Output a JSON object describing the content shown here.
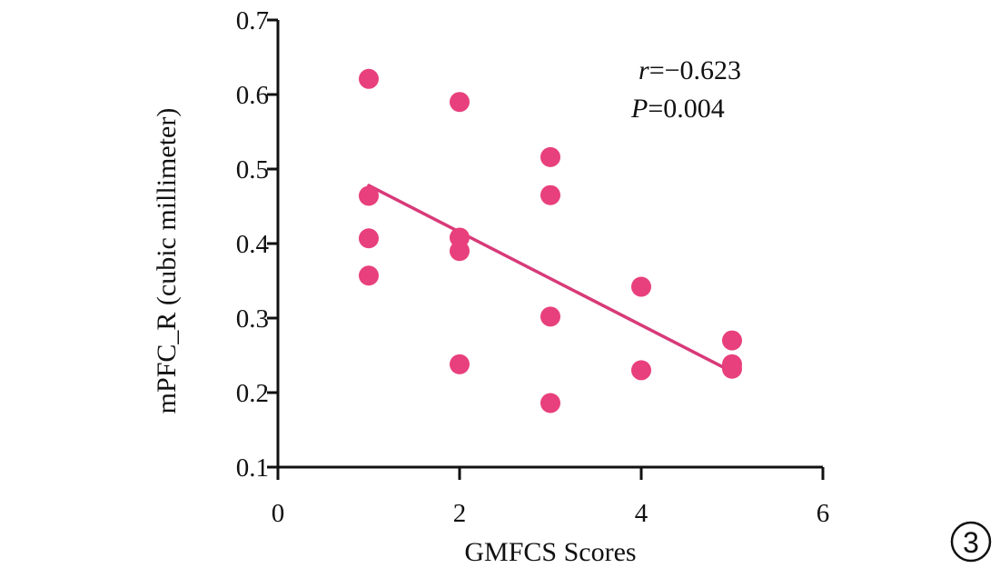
{
  "chart_data": {
    "type": "scatter",
    "xlabel": "GMFCS Scores",
    "ylabel": "mPFC_R (cubic millimeter)",
    "xlim": [
      0,
      6
    ],
    "ylim": [
      0.1,
      0.7
    ],
    "x_ticks": [
      "0",
      "2",
      "4",
      "6"
    ],
    "y_ticks": [
      "0.1",
      "0.2",
      "0.3",
      "0.4",
      "0.5",
      "0.6",
      "0.7"
    ],
    "points": [
      {
        "x": 1,
        "y": 0.621
      },
      {
        "x": 1,
        "y": 0.464
      },
      {
        "x": 1,
        "y": 0.407
      },
      {
        "x": 1,
        "y": 0.357
      },
      {
        "x": 2,
        "y": 0.59
      },
      {
        "x": 2,
        "y": 0.408
      },
      {
        "x": 2,
        "y": 0.39
      },
      {
        "x": 2,
        "y": 0.238
      },
      {
        "x": 3,
        "y": 0.516
      },
      {
        "x": 3,
        "y": 0.465
      },
      {
        "x": 3,
        "y": 0.302
      },
      {
        "x": 3,
        "y": 0.186
      },
      {
        "x": 4,
        "y": 0.342
      },
      {
        "x": 4,
        "y": 0.23
      },
      {
        "x": 5,
        "y": 0.27
      },
      {
        "x": 5,
        "y": 0.238
      },
      {
        "x": 5,
        "y": 0.232
      }
    ],
    "fit_line": {
      "x": [
        1,
        5
      ],
      "y": [
        0.478,
        0.228
      ]
    },
    "annotations": {
      "r_symbol": "r",
      "r_value": "=−0.623",
      "p_symbol": "P",
      "p_value": "=0.004"
    },
    "panel_label": "3",
    "colors": {
      "point": "#e8407c",
      "line": "#d83a78",
      "axis": "#111111"
    }
  }
}
